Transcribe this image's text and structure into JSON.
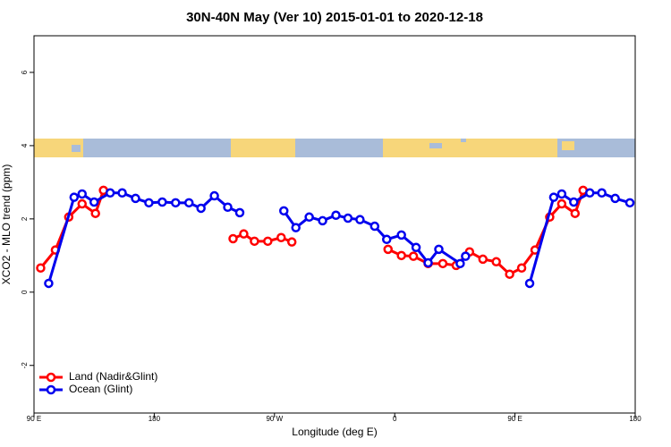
{
  "chart_data": {
    "type": "line",
    "title": "30N-40N May (Ver 10)   2015-01-01 to 2020-12-18",
    "xlabel": "Longitude (deg E)",
    "ylabel": "XCO2 - MLO trend (ppm)",
    "xlim": [
      90,
      540
    ],
    "xticks": [
      {
        "value": 90,
        "label": "90 E"
      },
      180,
      {
        "value": 270,
        "label": "90 W"
      },
      {
        "value": 360,
        "label": "0"
      },
      {
        "value": 450,
        "label": "90 E"
      },
      {
        "value": 540,
        "label": "180"
      }
    ],
    "ylim": [
      -3.3,
      7
    ],
    "yticks": [
      -2,
      0,
      2,
      4,
      6
    ],
    "legend": "bottomleft",
    "series": [
      {
        "name": "Land (Nadir&Glint)",
        "color": "#ff0000",
        "x": [
          95,
          106,
          116,
          126,
          136,
          142,
          200,
          239,
          247,
          255,
          265,
          275,
          283,
          320,
          355,
          365,
          374,
          385,
          396,
          406,
          416,
          426,
          436,
          446,
          455,
          465,
          476,
          485,
          495,
          501
        ],
        "values": [
          0.66,
          1.15,
          2.05,
          2.41,
          2.15,
          2.78,
          null,
          1.46,
          1.59,
          1.39,
          1.39,
          1.49,
          1.37,
          null,
          1.17,
          1.0,
          0.98,
          0.78,
          0.78,
          0.73,
          1.1,
          0.9,
          0.83,
          0.49,
          0.66,
          1.15,
          2.05,
          2.41,
          2.15,
          2.78
        ]
      },
      {
        "name": "Ocean (Glint)",
        "color": "#0000ee",
        "x": [
          101,
          120,
          126,
          135,
          147,
          156,
          166,
          176,
          186,
          196,
          206,
          215,
          225,
          235,
          244,
          260,
          277,
          286,
          296,
          306,
          316,
          325,
          334,
          345,
          354,
          365,
          376,
          385,
          393,
          409,
          413,
          430,
          461,
          479,
          485,
          494,
          506,
          515,
          525,
          536
        ],
        "values": [
          0.24,
          2.59,
          2.68,
          2.46,
          2.71,
          2.71,
          2.56,
          2.44,
          2.46,
          2.44,
          2.44,
          2.29,
          2.63,
          2.32,
          2.17,
          null,
          2.22,
          1.76,
          2.05,
          1.95,
          2.1,
          2.02,
          1.98,
          1.8,
          1.44,
          1.56,
          1.22,
          0.8,
          1.17,
          0.78,
          0.98,
          null,
          0.24,
          2.59,
          2.68,
          2.46,
          2.71,
          2.71,
          2.56,
          2.44
        ]
      }
    ]
  }
}
